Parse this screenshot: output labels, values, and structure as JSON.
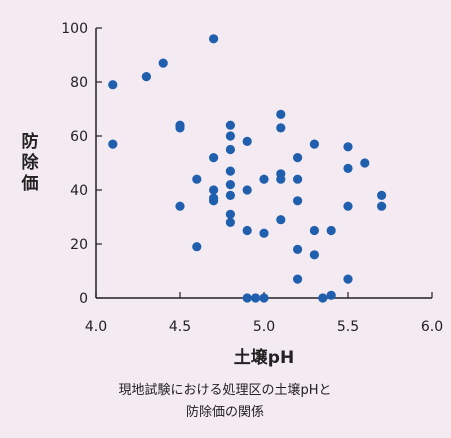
{
  "chart_data": {
    "type": "scatter",
    "title": "",
    "xlabel": "土壌pH",
    "ylabel": "防除価",
    "xlim": [
      4.0,
      6.0
    ],
    "ylim": [
      0,
      100
    ],
    "xticks": [
      "4.0",
      "4.5",
      "5.0",
      "5.5",
      "6.0"
    ],
    "yticks": [
      "0",
      "20",
      "40",
      "60",
      "80",
      "100"
    ],
    "grid": false,
    "caption_lines": [
      "現地試験における処理区の土壌pHと",
      "防除価の関係"
    ],
    "point_color": "#1f5fae",
    "x": [
      4.1,
      4.1,
      4.3,
      4.4,
      4.5,
      4.5,
      4.5,
      4.6,
      4.6,
      4.7,
      4.7,
      4.7,
      4.7,
      4.7,
      4.8,
      4.8,
      4.8,
      4.8,
      4.8,
      4.8,
      4.8,
      4.8,
      4.9,
      4.9,
      4.9,
      4.9,
      4.95,
      5.0,
      5.0,
      5.0,
      5.1,
      5.1,
      5.1,
      5.1,
      5.1,
      5.2,
      5.2,
      5.2,
      5.2,
      5.2,
      5.3,
      5.3,
      5.3,
      5.35,
      5.4,
      5.4,
      5.5,
      5.5,
      5.5,
      5.5,
      5.6,
      5.7,
      5.7
    ],
    "y": [
      79,
      57,
      82,
      87,
      64,
      63,
      34,
      44,
      19,
      96,
      52,
      40,
      36,
      37,
      64,
      60,
      55,
      47,
      42,
      38,
      31,
      28,
      58,
      40,
      25,
      0,
      0,
      44,
      24,
      0,
      68,
      63,
      46,
      44,
      29,
      52,
      44,
      36,
      18,
      7,
      57,
      25,
      16,
      0,
      25,
      1,
      56,
      48,
      34,
      7,
      50,
      38,
      34
    ]
  }
}
